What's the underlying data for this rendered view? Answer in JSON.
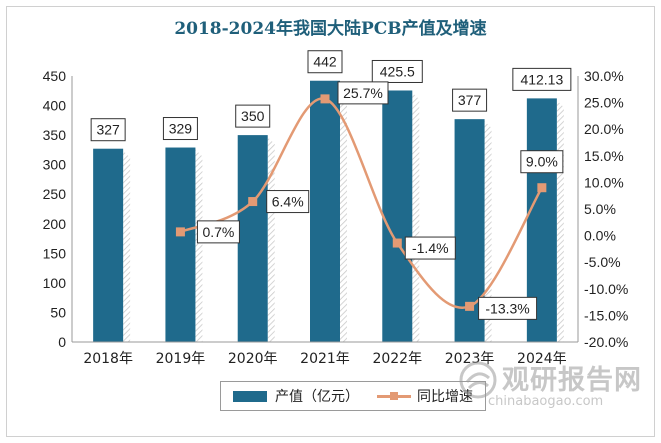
{
  "chart_data": {
    "type": "bar",
    "title": "2018-2024年我国大陆PCB产值及增速",
    "categories": [
      "2018年",
      "2019年",
      "2020年",
      "2021年",
      "2022年",
      "2023年",
      "2024年"
    ],
    "series": [
      {
        "name": "产值（亿元）",
        "type": "bar",
        "axis": "left",
        "values": [
          327,
          329,
          350,
          442,
          425.5,
          377,
          412.13
        ],
        "labels": [
          "327",
          "329",
          "350",
          "442",
          "425.5",
          "377",
          "412.13"
        ],
        "color": "#1f6a8c"
      },
      {
        "name": "同比增速",
        "type": "line",
        "axis": "right",
        "values": [
          null,
          0.7,
          6.4,
          25.7,
          -1.4,
          -13.3,
          9.0
        ],
        "labels": [
          "",
          "0.7%",
          "6.4%",
          "25.7%",
          "-1.4%",
          "-13.3%",
          "9.0%"
        ],
        "color": "#e39a74"
      }
    ],
    "y_left": {
      "min": 0,
      "max": 450,
      "step": 50,
      "ticks": [
        "0",
        "50",
        "100",
        "150",
        "200",
        "250",
        "300",
        "350",
        "400",
        "450"
      ]
    },
    "y_right": {
      "min": -20,
      "max": 30,
      "step": 5,
      "ticks": [
        "-20.0%",
        "-15.0%",
        "-10.0%",
        "-5.0%",
        "0.0%",
        "5.0%",
        "10.0%",
        "15.0%",
        "20.0%",
        "25.0%",
        "30.0%"
      ]
    },
    "legend_position": "bottom"
  },
  "watermark": {
    "name": "观研报告网",
    "domain": "chinabaogao.com"
  }
}
